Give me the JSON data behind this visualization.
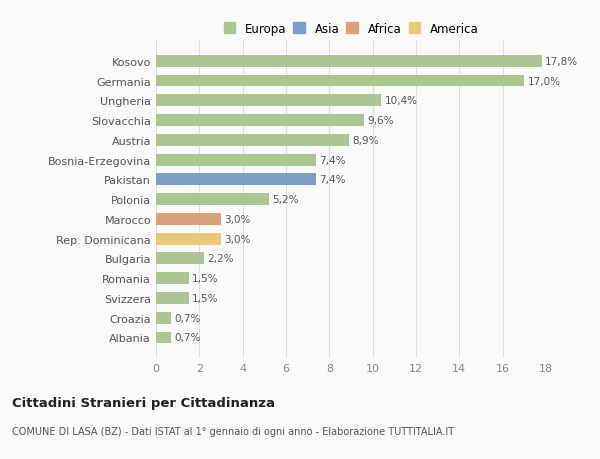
{
  "categories": [
    "Kosovo",
    "Germania",
    "Ungheria",
    "Slovacchia",
    "Austria",
    "Bosnia-Erzegovina",
    "Pakistan",
    "Polonia",
    "Marocco",
    "Rep. Dominicana",
    "Bulgaria",
    "Romania",
    "Svizzera",
    "Croazia",
    "Albania"
  ],
  "values": [
    17.8,
    17.0,
    10.4,
    9.6,
    8.9,
    7.4,
    7.4,
    5.2,
    3.0,
    3.0,
    2.2,
    1.5,
    1.5,
    0.7,
    0.7
  ],
  "labels": [
    "17,8%",
    "17,0%",
    "10,4%",
    "9,6%",
    "8,9%",
    "7,4%",
    "7,4%",
    "5,2%",
    "3,0%",
    "3,0%",
    "2,2%",
    "1,5%",
    "1,5%",
    "0,7%",
    "0,7%"
  ],
  "colors": [
    "#adc593",
    "#adc593",
    "#adc593",
    "#adc593",
    "#adc593",
    "#adc593",
    "#7b9ec5",
    "#adc593",
    "#d9a07a",
    "#e8c97a",
    "#adc593",
    "#adc593",
    "#adc593",
    "#adc593",
    "#adc593"
  ],
  "legend_labels": [
    "Europa",
    "Asia",
    "Africa",
    "America"
  ],
  "legend_colors": [
    "#adc593",
    "#7b9ec5",
    "#d9a07a",
    "#e8c97a"
  ],
  "title": "Cittadini Stranieri per Cittadinanza",
  "subtitle": "COMUNE DI LASA (BZ) - Dati ISTAT al 1° gennaio di ogni anno - Elaborazione TUTTITALIA.IT",
  "xlim": [
    0,
    18
  ],
  "xticks": [
    0,
    2,
    4,
    6,
    8,
    10,
    12,
    14,
    16,
    18
  ],
  "background_color": "#f9f9f9",
  "grid_color": "#dddddd",
  "bar_height": 0.6
}
